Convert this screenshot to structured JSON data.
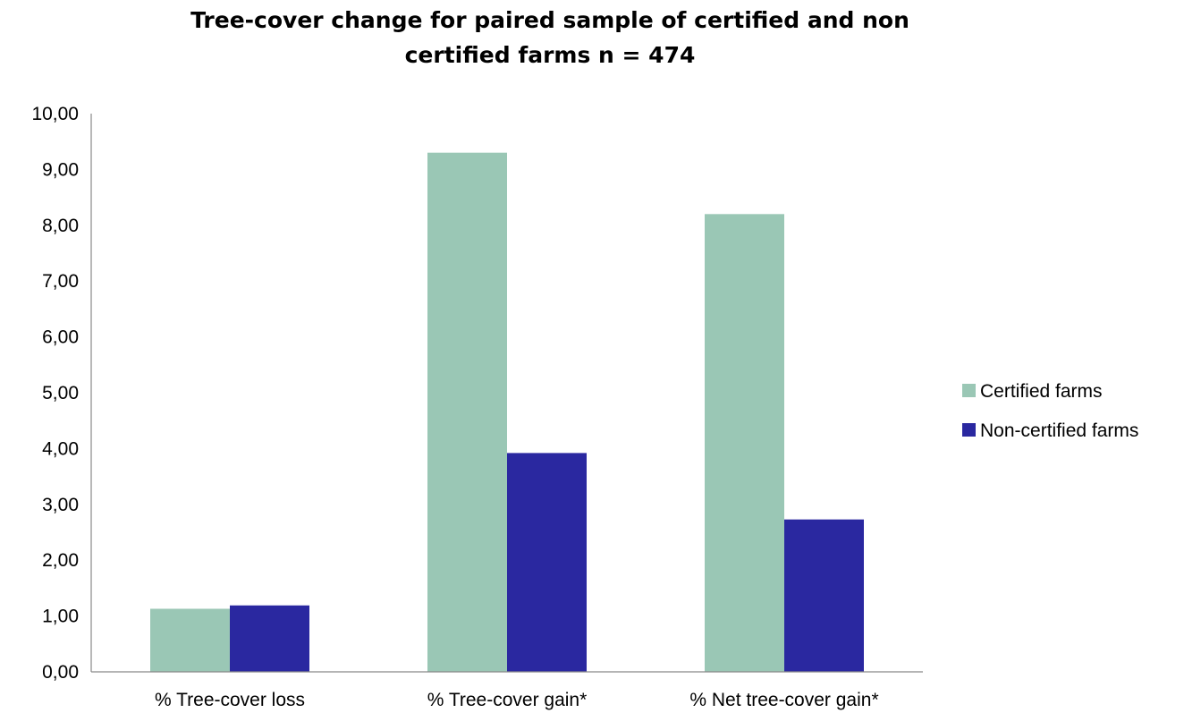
{
  "chart_data": {
    "type": "bar",
    "title_lines": [
      "Tree-cover change for paired sample of certified and non",
      "certified farms n = 474"
    ],
    "categories": [
      "% Tree-cover loss",
      "% Tree-cover  gain*",
      "% Net tree-cover gain*"
    ],
    "series": [
      {
        "name": "Certified farms",
        "color": "#9ac7b5",
        "values": [
          1.13,
          9.3,
          8.2
        ]
      },
      {
        "name": "Non-certified farms",
        "color": "#2a28a0",
        "values": [
          1.19,
          3.92,
          2.73
        ]
      }
    ],
    "yticks": [
      "0,00",
      "1,00",
      "2,00",
      "3,00",
      "4,00",
      "5,00",
      "6,00",
      "7,00",
      "8,00",
      "9,00",
      "10,00"
    ],
    "ylim": [
      0,
      10
    ],
    "legend_position": "right",
    "grid": false
  }
}
